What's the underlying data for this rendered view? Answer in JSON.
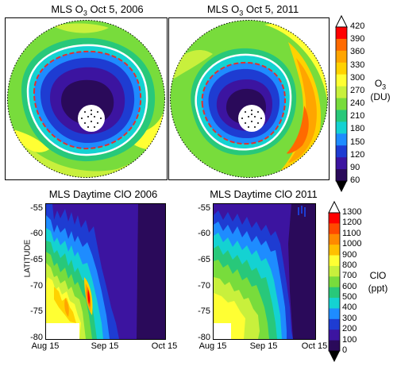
{
  "chart_data": [
    {
      "type": "heatmap",
      "title": "MLS O3 Oct 5, 2006",
      "title_main": "MLS O",
      "title_sub": "3",
      "title_rest": " Oct 5, 2006",
      "projection": "south-polar stereographic"
    },
    {
      "type": "heatmap",
      "title": "MLS O3 Oct 5, 2011",
      "title_main": "MLS O",
      "title_sub": "3",
      "title_rest": " Oct 5, 2011",
      "projection": "south-polar stereographic"
    },
    {
      "type": "heatmap",
      "title": "MLS Daytime ClO 2006",
      "ylabel": "LATITUDE",
      "x_ticks": [
        "Aug 15",
        "Sep 15",
        "Oct 15"
      ],
      "y_ticks": [
        "-55",
        "-60",
        "-65",
        "-70",
        "-75",
        "-80"
      ],
      "ylim": [
        -80,
        -54
      ],
      "xlim": [
        "Aug 15",
        "Oct 15"
      ]
    },
    {
      "type": "heatmap",
      "title": "MLS Daytime ClO 2011",
      "x_ticks": [
        "Aug 15",
        "Sep 15",
        "Oct 15"
      ],
      "y_ticks": [
        "-55",
        "-60",
        "-65",
        "-70",
        "-75",
        "-80"
      ],
      "ylim": [
        -80,
        -54
      ],
      "xlim": [
        "Aug 15",
        "Oct 15"
      ]
    }
  ],
  "colorbars": {
    "ozone": {
      "ticks": [
        "420",
        "390",
        "360",
        "330",
        "300",
        "270",
        "240",
        "210",
        "180",
        "150",
        "120",
        "90",
        "60"
      ],
      "label_main": "O",
      "label_sub": "3",
      "unit": "(DU)",
      "colors": [
        "#ff0000",
        "#ff6a00",
        "#ffa500",
        "#ffd200",
        "#ffff33",
        "#c8f03c",
        "#78dc3c",
        "#28c87a",
        "#14d2d2",
        "#1e8cff",
        "#1e3cd2",
        "#3c14a0",
        "#2a0a5a"
      ]
    },
    "clo": {
      "ticks": [
        "1300",
        "1200",
        "1100",
        "1000",
        "900",
        "800",
        "700",
        "600",
        "500",
        "400",
        "300",
        "200",
        "100",
        "0"
      ],
      "label": "ClO",
      "unit": "(ppt)",
      "colors": [
        "#ff0000",
        "#ff4a00",
        "#ff8a00",
        "#ffc000",
        "#ffff33",
        "#c8f03c",
        "#78dc3c",
        "#28c87a",
        "#14d2d2",
        "#1e8cff",
        "#1e3cd2",
        "#3c14a0",
        "#2a0a5a"
      ]
    }
  }
}
